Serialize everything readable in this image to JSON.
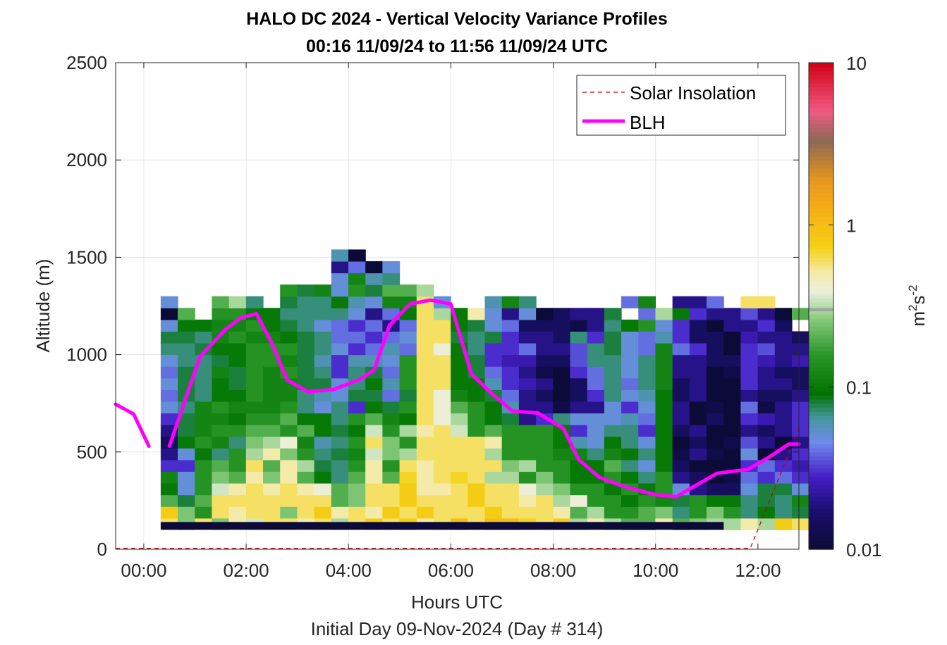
{
  "chart_data": {
    "type": "heatmap",
    "title": "HALO DC 2024 - Vertical Velocity Variance Profiles",
    "subtitle": "00:16 11/09/24 to 11:56 11/09/24  UTC",
    "xlabel": "Hours UTC",
    "xlabel2": "Initial Day 09-Nov-2024 (Day # 314)",
    "ylabel": "Altitude (m)",
    "xlim": [
      -0.55,
      12.8
    ],
    "ylim": [
      0,
      2500
    ],
    "x_ticks": [
      0,
      2,
      4,
      6,
      8,
      10,
      12
    ],
    "x_tick_labels": [
      "00:00",
      "02:00",
      "04:00",
      "06:00",
      "08:00",
      "10:00",
      "12:00"
    ],
    "y_ticks": [
      0,
      500,
      1000,
      1500,
      2000,
      2500
    ],
    "y_tick_labels": [
      "0",
      "500",
      "1000",
      "1500",
      "2000",
      "2500"
    ],
    "grid": true,
    "legend_position": "top-right",
    "colorbar": {
      "scale": "log",
      "label_base": "m",
      "label_sup1": "2",
      "label_mid": "s",
      "label_sup2": "-2",
      "ticks": [
        0.01,
        0.1,
        1,
        10
      ],
      "tick_labels": [
        "0.01",
        "0.1",
        "1",
        "10"
      ]
    },
    "heatmap": {
      "value_units": "m2 s-2 (approx.)",
      "x_start": 0.33,
      "x_step": 0.3333,
      "y_start": 100,
      "y_step": 60,
      "rows_bottom_to_top": [
        [
          0.6,
          0.25,
          0.6,
          0.25,
          0.5,
          0.35,
          0.6,
          0.6,
          0.5,
          0.6,
          0.3,
          0.6,
          0.8,
          0.6,
          0.8,
          0.5,
          0.6,
          1.0,
          0.6,
          1.0,
          1.0,
          0.7,
          0.6,
          0.8,
          0.3,
          0.5,
          0.3,
          0.2,
          0.2,
          0.5,
          0.2,
          0.25,
          0.3,
          0.3,
          0.5,
          0.3,
          0.8,
          0.6,
          0.3
        ],
        [
          0.8,
          0.25,
          0.15,
          0.6,
          0.5,
          0.6,
          0.6,
          0.25,
          0.6,
          0.8,
          0.5,
          0.6,
          0.5,
          0.8,
          0.6,
          0.8,
          0.6,
          0.6,
          0.6,
          0.8,
          0.6,
          0.6,
          0.6,
          0.5,
          0.2,
          0.3,
          0.15,
          0.15,
          0.2,
          0.25,
          0.07,
          0.15,
          0.25,
          0.15,
          0.07,
          0.1,
          0.07,
          0.08,
          0.05
        ],
        [
          0.2,
          0.08,
          0.2,
          0.6,
          0.6,
          0.6,
          0.6,
          0.6,
          0.6,
          0.6,
          0.2,
          0.25,
          0.6,
          0.6,
          0.8,
          0.6,
          0.6,
          0.6,
          0.8,
          0.6,
          0.6,
          0.5,
          0.6,
          0.3,
          0.4,
          0.15,
          0.15,
          0.1,
          0.15,
          0.12,
          0.08,
          0.15,
          0.1,
          0.1,
          0.07,
          0.08,
          0.07,
          0.12,
          0.07
        ],
        [
          0.1,
          0.05,
          0.15,
          0.35,
          0.5,
          0.6,
          0.5,
          0.6,
          0.5,
          0.4,
          0.2,
          0.25,
          0.6,
          0.6,
          0.8,
          0.5,
          0.5,
          0.6,
          0.8,
          0.6,
          0.6,
          0.4,
          0.3,
          0.25,
          0.15,
          0.15,
          0.1,
          0.15,
          0.1,
          0.15,
          0.05,
          0.02,
          0.015,
          0.015,
          0.05,
          0.08,
          0.08,
          0.05,
          0.07
        ],
        [
          0.12,
          0.05,
          0.15,
          0.25,
          0.2,
          0.5,
          0.25,
          0.5,
          0.2,
          0.1,
          0.07,
          0.2,
          0.5,
          0.2,
          0.7,
          0.5,
          0.6,
          0.7,
          0.6,
          0.3,
          0.3,
          0.15,
          0.25,
          0.15,
          0.1,
          0.1,
          0.15,
          0.1,
          0.07,
          0.15,
          0.02,
          0.015,
          0.01,
          0.012,
          0.04,
          0.03,
          0.04,
          0.03,
          0.05
        ],
        [
          0.03,
          0.03,
          0.15,
          0.2,
          0.15,
          0.6,
          0.2,
          0.5,
          0.3,
          0.08,
          0.07,
          0.15,
          0.5,
          0.15,
          0.6,
          0.5,
          0.6,
          0.6,
          0.6,
          0.6,
          0.25,
          0.3,
          0.15,
          0.15,
          0.1,
          0.1,
          0.2,
          0.07,
          0.05,
          0.1,
          0.015,
          0.01,
          0.01,
          0.01,
          0.03,
          0.04,
          0.03,
          0.025,
          0.02
        ],
        [
          0.02,
          0.05,
          0.1,
          0.07,
          0.15,
          0.3,
          0.5,
          0.25,
          0.15,
          0.07,
          0.08,
          0.12,
          0.35,
          0.25,
          0.3,
          0.6,
          0.6,
          0.6,
          0.6,
          0.3,
          0.15,
          0.15,
          0.15,
          0.12,
          0.12,
          0.07,
          0.12,
          0.1,
          0.07,
          0.1,
          0.012,
          0.02,
          0.012,
          0.01,
          0.05,
          0.01,
          0.02,
          0.03,
          0.02
        ],
        [
          0.015,
          0.1,
          0.15,
          0.12,
          0.07,
          0.25,
          0.3,
          0.4,
          0.12,
          0.06,
          0.07,
          0.15,
          0.6,
          0.25,
          0.15,
          0.6,
          0.6,
          0.6,
          0.6,
          0.5,
          0.15,
          0.15,
          0.15,
          0.1,
          0.06,
          0.05,
          0.1,
          0.07,
          0.05,
          0.1,
          0.01,
          0.015,
          0.01,
          0.012,
          0.035,
          0.02,
          0.01,
          0.02,
          0.015
        ],
        [
          0.02,
          0.08,
          0.12,
          0.15,
          0.15,
          0.2,
          0.2,
          0.15,
          0.2,
          0.1,
          0.08,
          0.1,
          0.35,
          0.15,
          0.3,
          0.5,
          0.6,
          0.35,
          0.15,
          0.2,
          0.15,
          0.15,
          0.15,
          0.1,
          0.03,
          0.05,
          0.07,
          0.07,
          0.03,
          0.1,
          0.015,
          0.02,
          0.01,
          0.01,
          0.02,
          0.015,
          0.02,
          0.03,
          0.025
        ],
        [
          0.03,
          0.08,
          0.12,
          0.12,
          0.1,
          0.15,
          0.15,
          0.2,
          0.1,
          0.1,
          0.07,
          0.15,
          0.2,
          0.12,
          0.1,
          0.6,
          0.4,
          0.3,
          0.15,
          0.1,
          0.08,
          0.02,
          0.03,
          0.07,
          0.05,
          0.05,
          0.05,
          0.06,
          0.04,
          0.1,
          0.02,
          0.01,
          0.015,
          0.01,
          0.03,
          0.025,
          0.02,
          0.03,
          0.03
        ],
        [
          0.05,
          0.07,
          0.12,
          0.15,
          0.12,
          0.12,
          0.12,
          0.15,
          0.07,
          0.05,
          0.07,
          0.03,
          0.1,
          0.08,
          0.15,
          0.6,
          0.4,
          0.2,
          0.15,
          0.1,
          0.06,
          0.02,
          0.02,
          0.012,
          0.02,
          0.02,
          0.05,
          0.03,
          0.05,
          0.1,
          0.02,
          0.01,
          0.012,
          0.01,
          0.04,
          0.012,
          0.02,
          0.03,
          0.02
        ],
        [
          0.04,
          0.08,
          0.07,
          0.1,
          0.1,
          0.15,
          0.12,
          0.12,
          0.07,
          0.06,
          0.05,
          0.08,
          0.08,
          0.04,
          0.08,
          0.6,
          0.4,
          0.12,
          0.1,
          0.08,
          0.04,
          0.02,
          0.015,
          0.01,
          0.015,
          0.03,
          0.07,
          0.05,
          0.06,
          0.1,
          0.015,
          0.02,
          0.01,
          0.01,
          0.02,
          0.015,
          0.015,
          0.02,
          0.04
        ],
        [
          0.05,
          0.08,
          0.07,
          0.1,
          0.08,
          0.15,
          0.12,
          0.12,
          0.08,
          0.08,
          0.05,
          0.07,
          0.1,
          0.06,
          0.15,
          0.6,
          0.6,
          0.1,
          0.1,
          0.06,
          0.03,
          0.025,
          0.02,
          0.01,
          0.015,
          0.04,
          0.07,
          0.04,
          0.07,
          0.12,
          0.015,
          0.02,
          0.01,
          0.01,
          0.03,
          0.02,
          0.02,
          0.015,
          0.04
        ],
        [
          0.04,
          0.08,
          0.07,
          0.12,
          0.08,
          0.15,
          0.12,
          0.15,
          0.08,
          0.07,
          0.03,
          0.07,
          0.08,
          0.04,
          0.15,
          0.6,
          0.6,
          0.1,
          0.08,
          0.04,
          0.03,
          0.02,
          0.012,
          0.01,
          0.03,
          0.04,
          0.07,
          0.05,
          0.07,
          0.12,
          0.02,
          0.02,
          0.01,
          0.012,
          0.03,
          0.02,
          0.015,
          0.015,
          0.03
        ],
        [
          0.05,
          0.07,
          0.07,
          0.08,
          0.1,
          0.15,
          0.15,
          0.12,
          0.08,
          0.06,
          0.03,
          0.06,
          0.06,
          0.05,
          0.15,
          0.6,
          0.6,
          0.1,
          0.08,
          0.03,
          0.025,
          0.025,
          0.015,
          0.015,
          0.035,
          0.07,
          0.07,
          0.05,
          0.07,
          0.12,
          0.02,
          0.02,
          0.015,
          0.015,
          0.03,
          0.025,
          0.02,
          0.025,
          0.07
        ],
        [
          0.07,
          0.07,
          0.08,
          0.1,
          0.1,
          0.15,
          0.15,
          0.15,
          0.08,
          0.07,
          0.05,
          0.03,
          0.04,
          0.06,
          0.04,
          0.6,
          0.4,
          0.1,
          0.07,
          0.03,
          0.03,
          0.04,
          0.02,
          0.02,
          0.035,
          0.07,
          0.08,
          0.05,
          0.04,
          0.12,
          0.04,
          0.03,
          0.015,
          0.01,
          0.03,
          0.035,
          0.02,
          0.02,
          0.07
        ],
        [
          0.08,
          0.08,
          0.07,
          0.12,
          0.15,
          0.12,
          0.12,
          0.1,
          0.08,
          0.07,
          0.04,
          0.04,
          0.03,
          0.04,
          0.05,
          0.6,
          0.6,
          0.08,
          0.07,
          0.08,
          0.03,
          0.02,
          0.02,
          0.015,
          0.07,
          0.03,
          0.08,
          0.05,
          0.04,
          0.06,
          0.03,
          0.015,
          0.015,
          0.01,
          0.025,
          0.02,
          0.02,
          0.015,
          0.06
        ],
        [
          0.05,
          0.1,
          0.1,
          0.12,
          0.12,
          0.15,
          0.1,
          0.08,
          0.07,
          0.05,
          0.04,
          0.03,
          0.04,
          0.02,
          0.04,
          0.6,
          0.6,
          0.1,
          0.08,
          0.05,
          0.04,
          0.015,
          0.015,
          0.015,
          0.012,
          0.02,
          0.07,
          0.1,
          0.15,
          0.05,
          0.03,
          0.015,
          0.01,
          0.02,
          0.02,
          0.03,
          0.015,
          null,
          null
        ],
        [
          0.01,
          0.2,
          null,
          0.15,
          0.15,
          0.1,
          0.1,
          0.07,
          0.07,
          0.07,
          0.07,
          0.05,
          0.02,
          0.04,
          0.1,
          0.6,
          0.3,
          0.1,
          0.5,
          0.05,
          0.02,
          0.05,
          0.01,
          0.015,
          0.02,
          0.02,
          0.08,
          null,
          0.04,
          0.3,
          0.1,
          0.03,
          0.02,
          0.02,
          0.035,
          0.02,
          0.01,
          0.2,
          null
        ],
        [
          0.05,
          null,
          null,
          0.2,
          0.3,
          0.07,
          null,
          0.08,
          0.07,
          0.07,
          0.1,
          0.06,
          0.05,
          0.12,
          0.12,
          0.6,
          0.05,
          null,
          null,
          0.06,
          0.12,
          0.07,
          null,
          null,
          null,
          null,
          null,
          0.04,
          0.12,
          null,
          0.02,
          0.02,
          0.04,
          null,
          0.6,
          0.6,
          null,
          null,
          null
        ],
        [
          null,
          null,
          null,
          null,
          null,
          null,
          null,
          0.15,
          0.08,
          0.12,
          0.05,
          0.15,
          0.08,
          0.2,
          0.2,
          0.3,
          null,
          null,
          null,
          null,
          null,
          null,
          null,
          null,
          null,
          null,
          null,
          null,
          null,
          null,
          null,
          null,
          null,
          null,
          null,
          null,
          null,
          null,
          null
        ],
        [
          null,
          null,
          null,
          null,
          null,
          null,
          null,
          null,
          null,
          null,
          0.05,
          0.12,
          0.06,
          0.07,
          null,
          null,
          null,
          null,
          null,
          null,
          null,
          null,
          null,
          null,
          null,
          null,
          null,
          null,
          null,
          null,
          null,
          null,
          null,
          null,
          null,
          null,
          null,
          null,
          null
        ],
        [
          null,
          null,
          null,
          null,
          null,
          null,
          null,
          null,
          null,
          null,
          0.02,
          0.04,
          0.01,
          0.05,
          null,
          null,
          null,
          null,
          null,
          null,
          null,
          null,
          null,
          null,
          null,
          null,
          null,
          null,
          null,
          null,
          null,
          null,
          null,
          null,
          null,
          null,
          null,
          null,
          null
        ],
        [
          null,
          null,
          null,
          null,
          null,
          null,
          null,
          null,
          null,
          null,
          0.06,
          0.01,
          null,
          null,
          null,
          null,
          null,
          null,
          null,
          null,
          null,
          null,
          null,
          null,
          null,
          null,
          null,
          null,
          null,
          null,
          null,
          null,
          null,
          null,
          null,
          null,
          null,
          null,
          null
        ]
      ]
    },
    "near_surface_band": {
      "x_range": [
        0.33,
        11.33
      ],
      "y_range": [
        100,
        140
      ],
      "value": 0.01
    },
    "series": [
      {
        "name": "Solar Insolation",
        "style": "dashed",
        "color": "#cc0000",
        "x": [
          -0.55,
          0,
          2,
          4,
          6,
          8,
          10,
          11.85,
          12.8
        ],
        "y": [
          5,
          5,
          5,
          5,
          5,
          5,
          5,
          5,
          620
        ]
      },
      {
        "name": "BLH",
        "style": "solid",
        "color": "#ff00ff",
        "segments": [
          {
            "x": [
              -0.55,
              -0.2,
              0.1
            ],
            "y": [
              745,
              695,
              530
            ]
          },
          {
            "x": [
              0.5,
              1.1,
              1.6,
              1.9,
              2.2,
              2.5,
              2.8,
              3.2,
              3.7,
              4.2,
              4.5,
              4.8,
              5.2,
              5.6,
              6.0,
              6.4,
              6.8,
              7.2,
              7.7,
              8.2,
              8.5,
              8.9,
              9.3,
              9.7,
              10.0,
              10.4,
              10.8,
              11.2,
              11.8,
              12.2,
              12.6,
              12.8
            ],
            "y": [
              530,
              990,
              1130,
              1190,
              1210,
              1060,
              870,
              810,
              820,
              870,
              920,
              1150,
              1260,
              1280,
              1260,
              900,
              800,
              710,
              700,
              620,
              460,
              370,
              330,
              300,
              280,
              270,
              330,
              390,
              410,
              470,
              540,
              540
            ]
          }
        ]
      }
    ]
  }
}
